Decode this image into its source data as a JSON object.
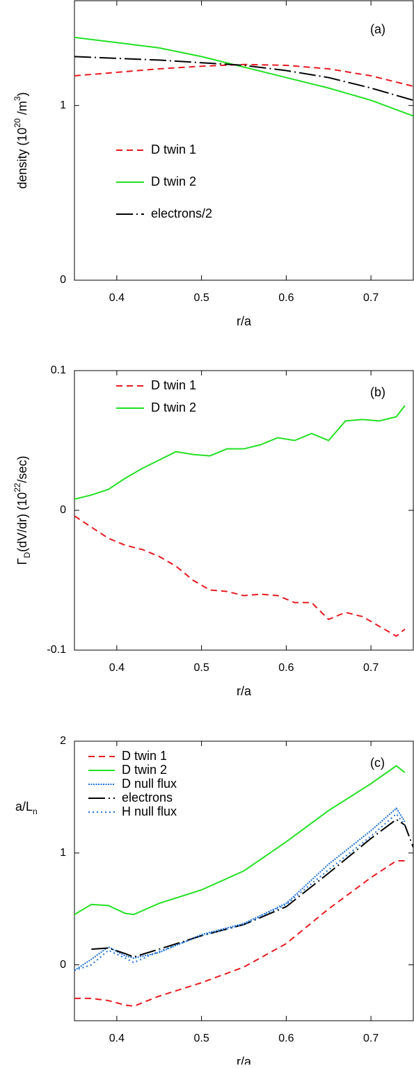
{
  "chart_data": [
    {
      "type": "line",
      "annotation": "(a)",
      "x_label": "r/a",
      "y_label": [
        {
          "text": "density (10"
        },
        {
          "text": "20",
          "script": "super"
        },
        {
          "text": " /m"
        },
        {
          "text": "3",
          "script": "super"
        },
        {
          "text": ")"
        }
      ],
      "y_label_rotate": true,
      "xlim": [
        0.35,
        0.75
      ],
      "xticks": [
        0.4,
        0.5,
        0.6,
        0.7
      ],
      "ylim": [
        0,
        1.6
      ],
      "yticks": [
        0,
        1
      ],
      "legend": "center left",
      "x": [
        0.35,
        0.4,
        0.45,
        0.5,
        0.55,
        0.6,
        0.65,
        0.7,
        0.75
      ],
      "series": [
        {
          "name": "D twin 1",
          "color": "#e8191f",
          "dash": "dashed",
          "values": [
            1.17,
            1.19,
            1.21,
            1.225,
            1.235,
            1.23,
            1.21,
            1.17,
            1.11
          ]
        },
        {
          "name": "D twin 2",
          "color": "#22e022",
          "dash": "solid",
          "values": [
            1.39,
            1.36,
            1.33,
            1.28,
            1.22,
            1.16,
            1.1,
            1.03,
            0.94
          ]
        },
        {
          "name": "electrons/2",
          "color": "#000000",
          "dash": "longdash",
          "values": [
            1.28,
            1.27,
            1.26,
            1.245,
            1.23,
            1.2,
            1.16,
            1.1,
            1.03
          ]
        }
      ]
    },
    {
      "type": "line",
      "annotation": "(b)",
      "x_label": "r/a",
      "y_label": [
        {
          "text": "Γ"
        },
        {
          "text": "D",
          "script": "sub"
        },
        {
          "text": "(dV/dr) (10"
        },
        {
          "text": "22",
          "script": "super"
        },
        {
          "text": "/sec)"
        }
      ],
      "y_label_rotate": true,
      "xlim": [
        0.35,
        0.75
      ],
      "xticks": [
        0.4,
        0.5,
        0.6,
        0.7
      ],
      "ylim": [
        -0.1,
        0.1
      ],
      "yticks": [
        -0.1,
        0,
        0.1
      ],
      "legend": "upper left",
      "x": [
        0.35,
        0.37,
        0.39,
        0.41,
        0.43,
        0.45,
        0.47,
        0.49,
        0.51,
        0.53,
        0.55,
        0.57,
        0.59,
        0.61,
        0.63,
        0.65,
        0.67,
        0.69,
        0.71,
        0.73,
        0.74
      ],
      "series": [
        {
          "name": "D twin 1",
          "color": "#e8191f",
          "dash": "dashed",
          "values": [
            -0.004,
            -0.012,
            -0.02,
            -0.025,
            -0.028,
            -0.033,
            -0.04,
            -0.05,
            -0.057,
            -0.058,
            -0.061,
            -0.06,
            -0.061,
            -0.066,
            -0.066,
            -0.078,
            -0.073,
            -0.076,
            -0.083,
            -0.09,
            -0.085
          ]
        },
        {
          "name": "D twin 2",
          "color": "#22e022",
          "dash": "solid",
          "values": [
            0.008,
            0.011,
            0.015,
            0.023,
            0.03,
            0.036,
            0.042,
            0.04,
            0.039,
            0.044,
            0.044,
            0.047,
            0.052,
            0.05,
            0.055,
            0.05,
            0.064,
            0.065,
            0.064,
            0.067,
            0.075
          ]
        }
      ]
    },
    {
      "type": "line",
      "annotation": "(c)",
      "x_label": "r/a",
      "y_label": [
        {
          "text": "a/L"
        },
        {
          "text": "n",
          "script": "sub"
        }
      ],
      "y_label_rotate": false,
      "xlim": [
        0.35,
        0.75
      ],
      "xticks": [
        0.4,
        0.5,
        0.6,
        0.7
      ],
      "ylim": [
        -0.5,
        2
      ],
      "yticks": [
        0,
        1,
        2
      ],
      "legend": "upper left",
      "x": [
        0.35,
        0.37,
        0.39,
        0.41,
        0.42,
        0.45,
        0.5,
        0.55,
        0.6,
        0.65,
        0.7,
        0.73,
        0.74,
        0.75
      ],
      "series": [
        {
          "name": "D twin 1",
          "color": "#e8191f",
          "dash": "dashed",
          "values": [
            -0.3,
            -0.3,
            -0.32,
            -0.36,
            -0.37,
            -0.28,
            -0.16,
            -0.02,
            0.19,
            0.5,
            0.78,
            0.93,
            0.93,
            null
          ]
        },
        {
          "name": "D twin 2",
          "color": "#22e022",
          "dash": "solid",
          "values": [
            0.45,
            0.54,
            0.53,
            0.46,
            0.45,
            0.55,
            0.67,
            0.84,
            1.1,
            1.38,
            1.62,
            1.78,
            1.72,
            null
          ]
        },
        {
          "name": "D null flux",
          "color": "#1b6fd6",
          "dash": "dotted",
          "values": [
            -0.05,
            0.05,
            0.16,
            0.08,
            0.06,
            0.11,
            0.27,
            0.37,
            0.55,
            0.9,
            1.2,
            1.4,
            1.28,
            null
          ]
        },
        {
          "name": "electrons",
          "color": "#000000",
          "dash": "longdash",
          "values": [
            null,
            0.14,
            0.15,
            0.1,
            0.07,
            0.14,
            0.26,
            0.36,
            0.52,
            0.82,
            1.13,
            1.3,
            1.25,
            1.05
          ]
        },
        {
          "name": "H null flux",
          "color": "#1b6fd6",
          "dash": "sparse",
          "values": [
            -0.05,
            0,
            0.13,
            0.06,
            0.02,
            0.12,
            0.26,
            0.36,
            0.54,
            0.85,
            1.15,
            1.35,
            1.25,
            null
          ]
        }
      ]
    }
  ]
}
